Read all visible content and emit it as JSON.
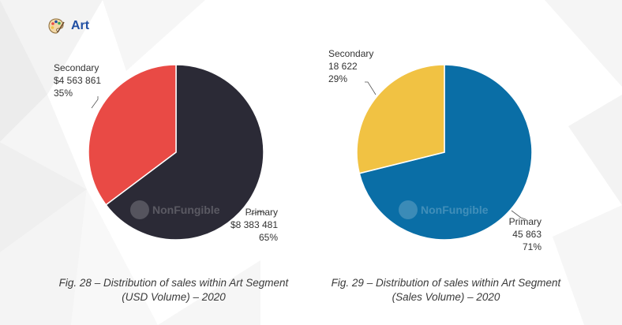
{
  "header": {
    "title": "Art",
    "icon": "palette-icon"
  },
  "watermark": "NonFungible",
  "colors": {
    "primary_usd": "#2b2a36",
    "secondary_usd": "#e94a45",
    "primary_sales": "#0a6ea6",
    "secondary_sales": "#f1c243"
  },
  "chart_data": [
    {
      "type": "pie",
      "categories": [
        "Primary",
        "Secondary"
      ],
      "values": [
        8383481,
        4563861
      ],
      "value_labels": [
        "$8 383 481",
        "$4 563 861"
      ],
      "percent_labels": [
        "65%",
        "35%"
      ],
      "colors": [
        "#2b2a36",
        "#e94a45"
      ],
      "caption_line1": "Fig. 28 – Distribution of sales within Art Segment",
      "caption_line2": "(USD Volume) – 2020"
    },
    {
      "type": "pie",
      "categories": [
        "Primary",
        "Secondary"
      ],
      "values": [
        45863,
        18622
      ],
      "value_labels": [
        "45 863",
        "18 622"
      ],
      "percent_labels": [
        "71%",
        "29%"
      ],
      "colors": [
        "#0a6ea6",
        "#f1c243"
      ],
      "caption_line1": "Fig. 29 – Distribution of sales within Art Segment",
      "caption_line2": "(Sales Volume) – 2020"
    }
  ]
}
